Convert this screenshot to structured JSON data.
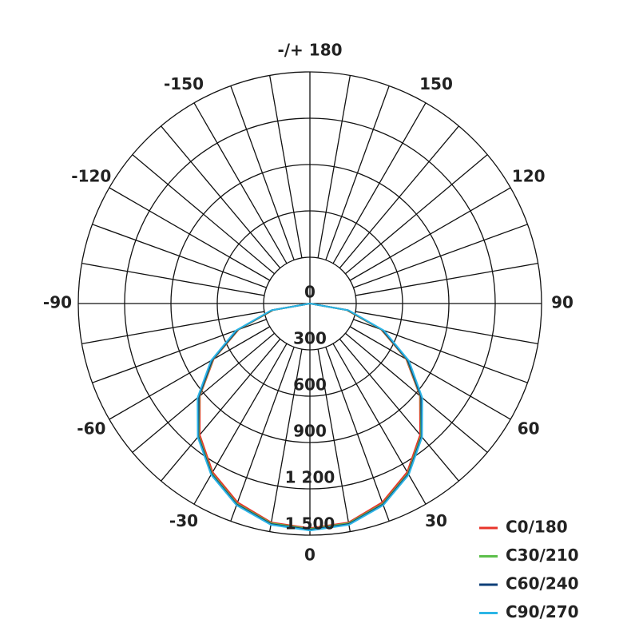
{
  "chart_data": {
    "type": "polar",
    "theta": [
      -90,
      -80,
      -70,
      -60,
      -50,
      -40,
      -30,
      -20,
      -10,
      0,
      10,
      20,
      30,
      40,
      50,
      60,
      70,
      80,
      90
    ],
    "series": [
      {
        "name": "C0/180",
        "color": "#e8342a",
        "values": [
          0,
          240,
          490,
          720,
          930,
          1110,
          1260,
          1370,
          1440,
          1455,
          1440,
          1370,
          1260,
          1110,
          930,
          720,
          490,
          240,
          0
        ]
      },
      {
        "name": "C30/210",
        "color": "#5cbf4a",
        "values": [
          0,
          245,
          495,
          725,
          935,
          1120,
          1270,
          1380,
          1445,
          1460,
          1445,
          1380,
          1270,
          1120,
          935,
          725,
          495,
          245,
          0
        ]
      },
      {
        "name": "C60/240",
        "color": "#0e3f78",
        "values": [
          0,
          250,
          500,
          730,
          940,
          1125,
          1275,
          1385,
          1450,
          1465,
          1450,
          1385,
          1275,
          1125,
          940,
          730,
          500,
          250,
          0
        ]
      },
      {
        "name": "C90/270",
        "color": "#2cb5e6",
        "values": [
          0,
          255,
          510,
          740,
          950,
          1130,
          1280,
          1390,
          1455,
          1470,
          1455,
          1390,
          1280,
          1130,
          950,
          740,
          510,
          255,
          0
        ]
      }
    ],
    "rlim": [
      0,
      1500
    ],
    "rticks": [
      0,
      300,
      600,
      900,
      {
        "value": 1200,
        "label": "1 200"
      },
      {
        "value": 1500,
        "label": "1 500"
      }
    ],
    "thetaticks": [
      0,
      30,
      60,
      90,
      120,
      150,
      {
        "value": 180,
        "label": "-/+ 180"
      },
      -150,
      -120,
      -90,
      -60,
      -30
    ],
    "theta_grid": [
      -170,
      -160,
      -150,
      -140,
      -130,
      -120,
      -110,
      -100,
      -90,
      -80,
      -70,
      -60,
      -50,
      -40,
      -30,
      -20,
      -10,
      0,
      10,
      20,
      30,
      40,
      50,
      60,
      70,
      80,
      90,
      100,
      110,
      120,
      130,
      140,
      150,
      160,
      170,
      180
    ],
    "legend": "lower right"
  }
}
